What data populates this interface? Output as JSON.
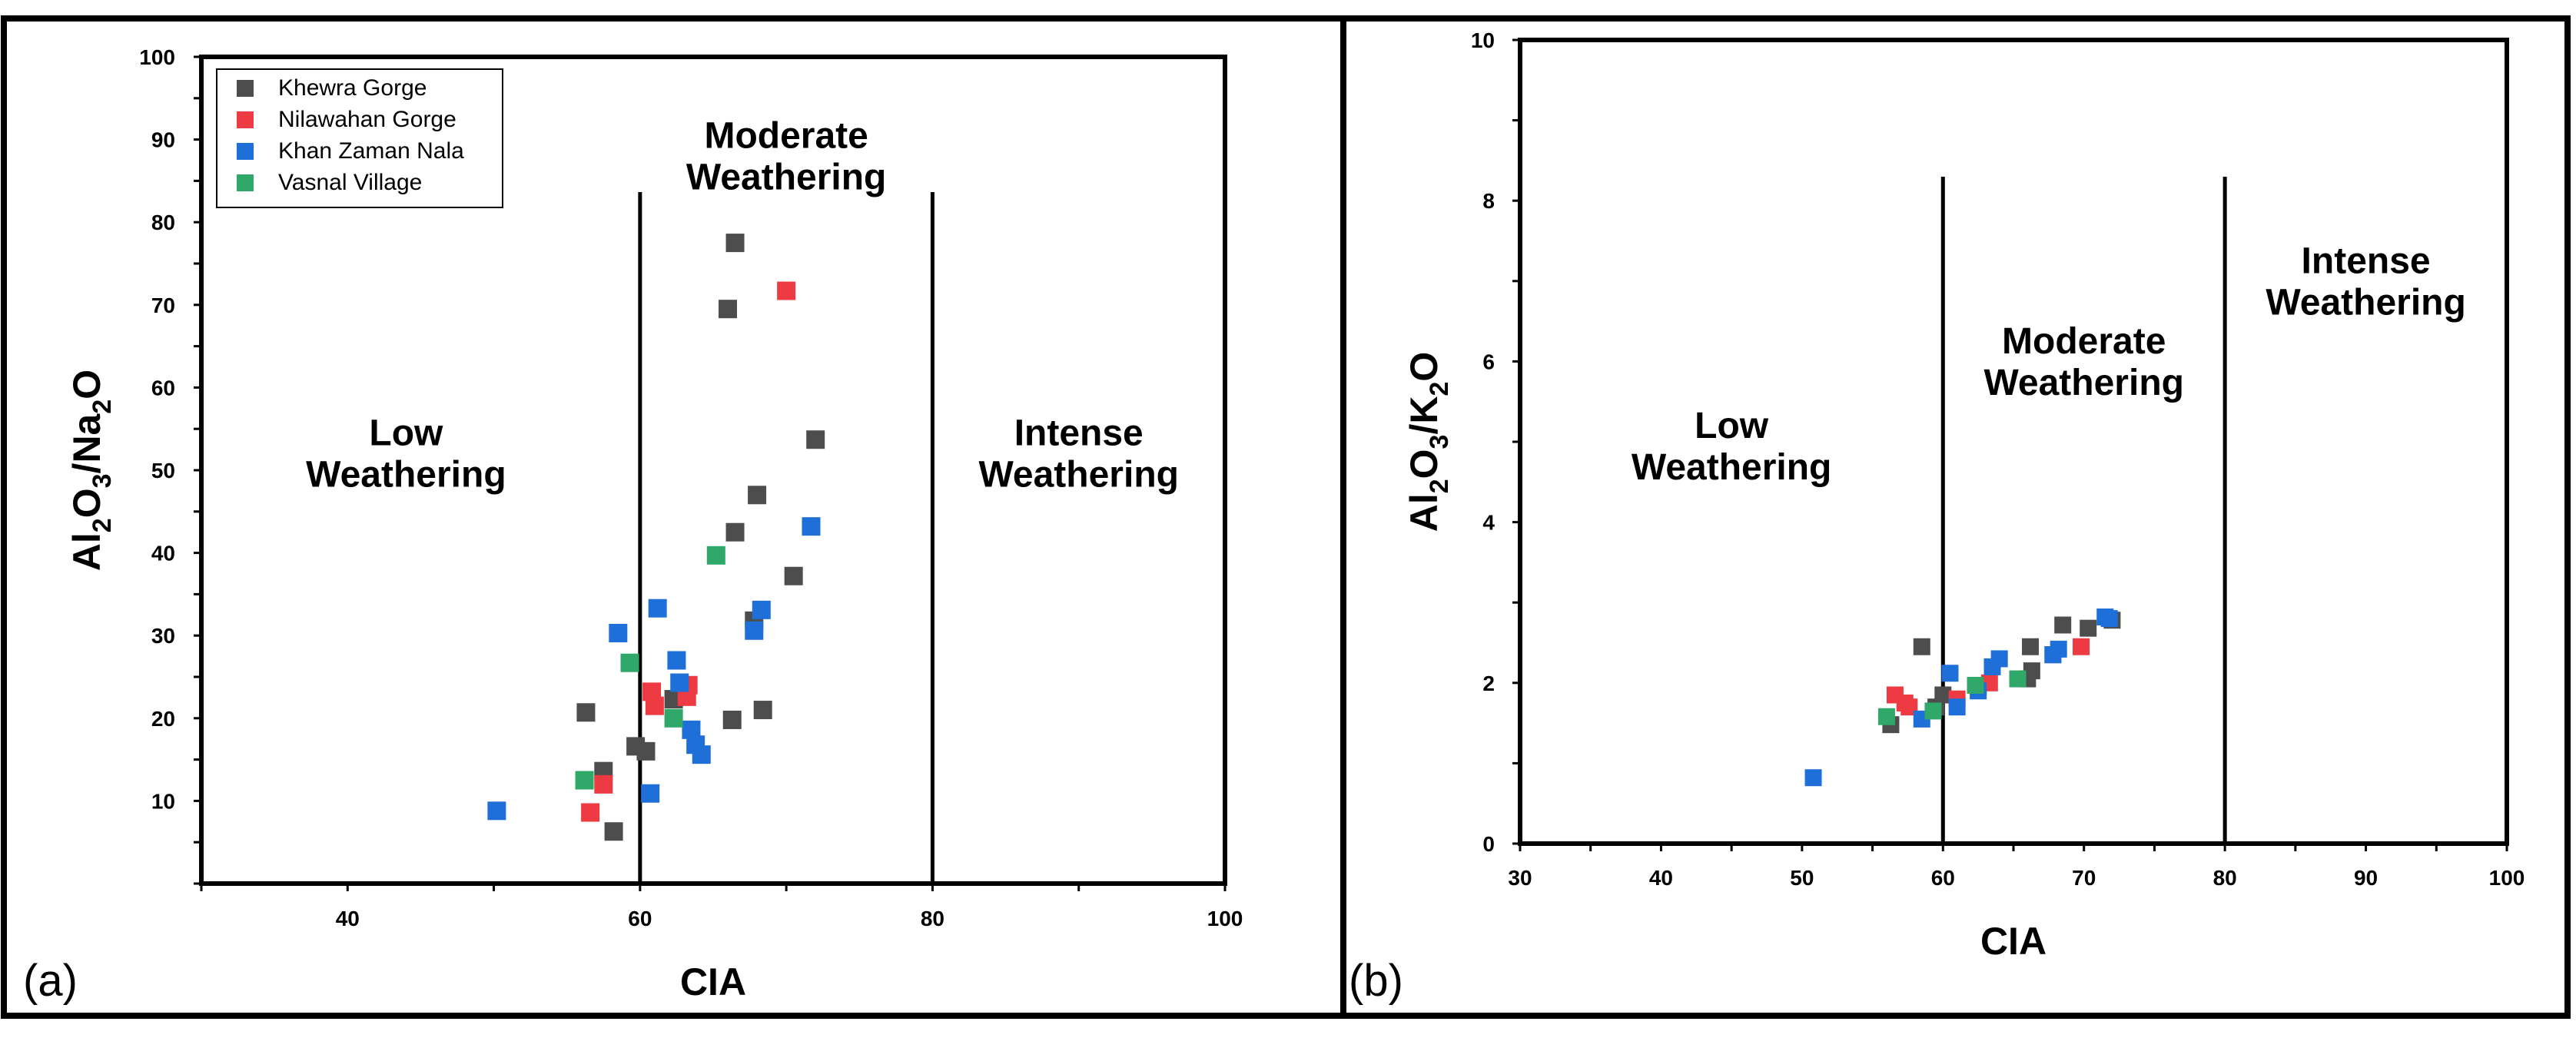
{
  "colors": {
    "khewra": "#4d4d4d",
    "nilawahan": "#ee3a43",
    "khan_zaman": "#1f6fd8",
    "vasnal": "#2fa869"
  },
  "chart_data": [
    {
      "type": "scatter",
      "panel_label": "(a)",
      "title": "",
      "xlabel": "CIA",
      "ylabel_parts": [
        "Al",
        "2",
        "O",
        "3",
        "/Na",
        "2",
        "O"
      ],
      "xlim": [
        30,
        100
      ],
      "ylim": [
        0,
        100
      ],
      "xticks": [
        40,
        60,
        80,
        100
      ],
      "yticks": [
        10,
        20,
        30,
        40,
        50,
        60,
        70,
        80,
        90,
        100
      ],
      "boundaries": [
        60,
        80
      ],
      "zones": [
        {
          "name": "low",
          "lines": [
            "Low",
            "Weathering"
          ],
          "x": 44,
          "y": 53
        },
        {
          "name": "moderate",
          "lines": [
            "Moderate",
            "Weathering"
          ],
          "x": 70,
          "y": 89
        },
        {
          "name": "intense",
          "lines": [
            "Intense",
            "Weathering"
          ],
          "x": 90,
          "y": 53
        }
      ],
      "legend": {
        "placement": "top-left",
        "entries": [
          {
            "name": "Khewra Gorge",
            "color_key": "khewra"
          },
          {
            "name": "Nilawahan Gorge",
            "color_key": "nilawahan"
          },
          {
            "name": "Khan Zaman Nala",
            "color_key": "khan_zaman"
          },
          {
            "name": "Vasnal Village",
            "color_key": "vasnal"
          }
        ]
      },
      "series": [
        {
          "name": "Khewra Gorge",
          "color_key": "khewra",
          "points": [
            [
              66.5,
              77.5
            ],
            [
              66,
              69.5
            ],
            [
              72,
              53.7
            ],
            [
              68,
              47
            ],
            [
              66.5,
              42.5
            ],
            [
              70.5,
              37.2
            ],
            [
              67.8,
              31.8
            ],
            [
              68.4,
              21
            ],
            [
              66.3,
              19.8
            ],
            [
              56.3,
              20.7
            ],
            [
              62.3,
              22.3
            ],
            [
              59.7,
              16.6
            ],
            [
              60.4,
              16
            ],
            [
              57.5,
              13.6
            ],
            [
              58.2,
              6.3
            ]
          ]
        },
        {
          "name": "Nilawahan Gorge",
          "color_key": "nilawahan",
          "points": [
            [
              70,
              71.7
            ],
            [
              60.8,
              23.2
            ],
            [
              61,
              21.5
            ],
            [
              63.3,
              24
            ],
            [
              63.2,
              22.6
            ],
            [
              57.5,
              12
            ],
            [
              56.6,
              8.6
            ]
          ]
        },
        {
          "name": "Khan Zaman Nala",
          "color_key": "khan_zaman",
          "points": [
            [
              50.2,
              8.8
            ],
            [
              58.5,
              30.3
            ],
            [
              61.2,
              33.3
            ],
            [
              62.5,
              27
            ],
            [
              62.7,
              24.3
            ],
            [
              63.5,
              18.6
            ],
            [
              63.8,
              16.8
            ],
            [
              64.2,
              15.6
            ],
            [
              60.7,
              10.9
            ],
            [
              67.8,
              30.6
            ],
            [
              68.3,
              33.1
            ],
            [
              71.7,
              43.2
            ]
          ]
        },
        {
          "name": "Vasnal Village",
          "color_key": "vasnal",
          "points": [
            [
              56.2,
              12.5
            ],
            [
              59.3,
              26.7
            ],
            [
              62.3,
              20
            ],
            [
              65.2,
              39.7
            ]
          ]
        }
      ]
    },
    {
      "type": "scatter",
      "panel_label": "(b)",
      "title": "",
      "xlabel": "CIA",
      "ylabel_parts": [
        "Al",
        "2",
        "O",
        "3",
        "/K",
        "2",
        "O"
      ],
      "xlim": [
        30,
        100
      ],
      "ylim": [
        0,
        10
      ],
      "xticks": [
        30,
        40,
        50,
        60,
        70,
        80,
        90,
        100
      ],
      "yticks": [
        0,
        2,
        4,
        6,
        8,
        10
      ],
      "boundaries": [
        60,
        80
      ],
      "zones": [
        {
          "name": "low",
          "lines": [
            "Low",
            "Weathering"
          ],
          "x": 45,
          "y": 5.05
        },
        {
          "name": "moderate",
          "lines": [
            "Moderate",
            "Weathering"
          ],
          "x": 70,
          "y": 6.1
        },
        {
          "name": "intense",
          "lines": [
            "Intense",
            "Weathering"
          ],
          "x": 90,
          "y": 7.1
        }
      ],
      "series": [
        {
          "name": "Khewra Gorge",
          "color_key": "khewra",
          "points": [
            [
              56.3,
              1.48
            ],
            [
              58.5,
              2.45
            ],
            [
              60,
              1.85
            ],
            [
              62.5,
              1.95
            ],
            [
              66,
              2.05
            ],
            [
              66.3,
              2.15
            ],
            [
              66.2,
              2.45
            ],
            [
              68.5,
              2.72
            ],
            [
              70.3,
              2.68
            ],
            [
              72,
              2.78
            ],
            [
              67.8,
              2.35
            ],
            [
              59.5,
              1.7
            ]
          ]
        },
        {
          "name": "Nilawahan Gorge",
          "color_key": "nilawahan",
          "points": [
            [
              56.6,
              1.85
            ],
            [
              57.3,
              1.75
            ],
            [
              57.6,
              1.7
            ],
            [
              61,
              1.8
            ],
            [
              63.3,
              2
            ],
            [
              69.8,
              2.45
            ]
          ]
        },
        {
          "name": "Khan Zaman Nala",
          "color_key": "khan_zaman",
          "points": [
            [
              50.8,
              0.82
            ],
            [
              58.5,
              1.55
            ],
            [
              60.5,
              2.12
            ],
            [
              61,
              1.7
            ],
            [
              62.5,
              1.9
            ],
            [
              63.5,
              2.2
            ],
            [
              64,
              2.3
            ],
            [
              67.8,
              2.35
            ],
            [
              68.2,
              2.42
            ],
            [
              71.5,
              2.82
            ],
            [
              71.8,
              2.8
            ]
          ]
        },
        {
          "name": "Vasnal Village",
          "color_key": "vasnal",
          "points": [
            [
              56,
              1.58
            ],
            [
              59.3,
              1.65
            ],
            [
              62.3,
              1.97
            ],
            [
              65.3,
              2.05
            ]
          ]
        }
      ]
    }
  ]
}
